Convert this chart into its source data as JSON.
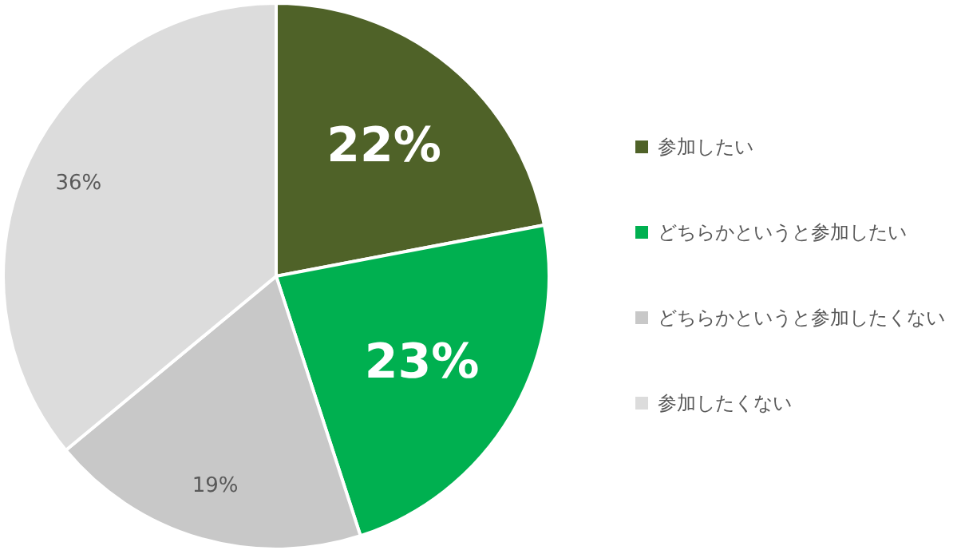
{
  "chart_data": {
    "type": "pie",
    "categories": [
      "参加したい",
      "どちらかというと参加したい",
      "どちらかというと参加したくない",
      "参加したくない"
    ],
    "values": [
      22,
      23,
      19,
      36
    ],
    "colors": [
      "#4f6228",
      "#00b050",
      "#c8c8c8",
      "#dcdcdc"
    ],
    "value_labels": [
      "22%",
      "23%",
      "19%",
      "36%"
    ],
    "legend": "right"
  }
}
